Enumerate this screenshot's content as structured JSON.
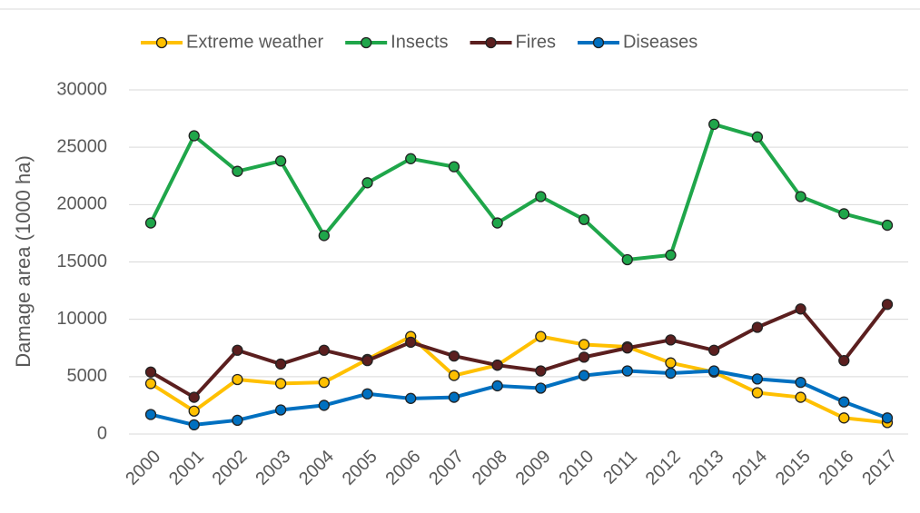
{
  "chart_data": {
    "type": "line",
    "y_label": "Damage area (1000 ha)",
    "categories": [
      "2000",
      "2001",
      "2002",
      "2003",
      "2004",
      "2005",
      "2006",
      "2007",
      "2008",
      "2009",
      "2010",
      "2011",
      "2012",
      "2013",
      "2014",
      "2015",
      "2016",
      "2017"
    ],
    "series": [
      {
        "name": "Extreme weather",
        "color": "#ffc000",
        "values": [
          4400,
          2000,
          4750,
          4400,
          4500,
          6500,
          8500,
          5100,
          6000,
          8500,
          7800,
          7600,
          6200,
          5400,
          3600,
          3200,
          1400,
          1000
        ]
      },
      {
        "name": "Insects",
        "color": "#1fa64a",
        "values": [
          18400,
          26000,
          22900,
          23800,
          17300,
          21900,
          24000,
          23300,
          18400,
          20700,
          18700,
          15200,
          15600,
          27000,
          25900,
          20700,
          19200,
          18200
        ]
      },
      {
        "name": "Fires",
        "color": "#5b1f1f",
        "values": [
          5400,
          3200,
          7300,
          6100,
          7300,
          6400,
          8000,
          6800,
          6000,
          5500,
          6700,
          7500,
          8200,
          7300,
          9300,
          10900,
          6400,
          11300
        ]
      },
      {
        "name": "Diseases",
        "color": "#0070c0",
        "values": [
          1700,
          800,
          1200,
          2100,
          2500,
          3500,
          3100,
          3200,
          4200,
          4000,
          5100,
          5500,
          5300,
          5500,
          4800,
          4500,
          2800,
          1400
        ]
      }
    ],
    "ylim": [
      0,
      30000
    ],
    "yticks": [
      0,
      5000,
      10000,
      15000,
      20000,
      25000,
      30000
    ],
    "grid": true,
    "legend": "top"
  }
}
